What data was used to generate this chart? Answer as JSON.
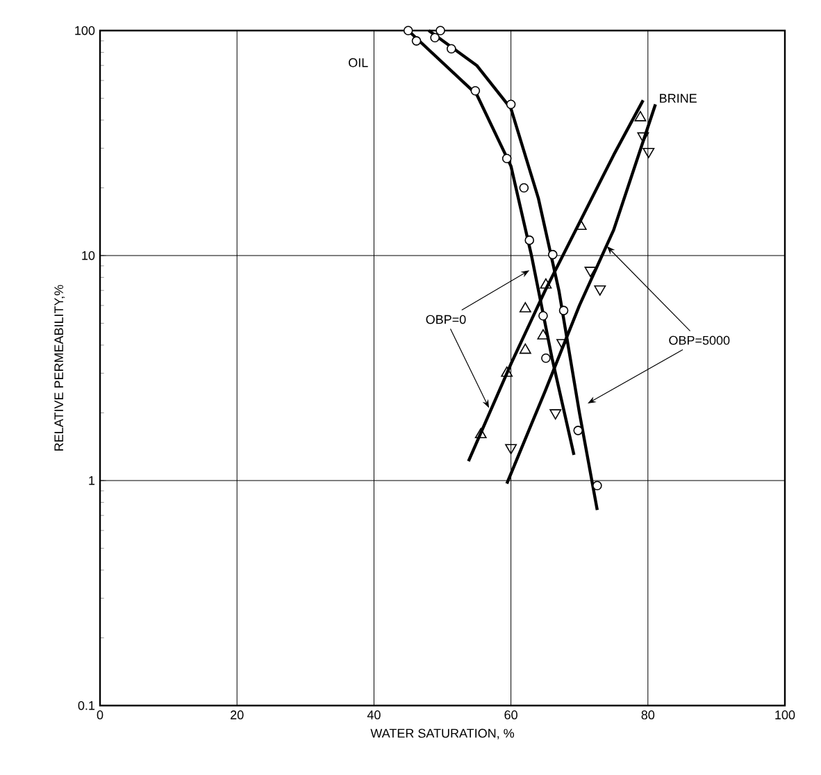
{
  "chart_data": {
    "type": "scatter",
    "xlabel": "WATER SATURATION, %",
    "ylabel": "RELATIVE  PERMEABILITY,%",
    "log": "y",
    "grid": true,
    "xlim": [
      0,
      100
    ],
    "ylim": [
      0.1,
      100
    ],
    "xticks": [
      0,
      20,
      40,
      60,
      80,
      100
    ],
    "yticks": [
      0.1,
      1,
      10,
      100
    ],
    "annotations": [
      "OIL",
      "BRINE",
      {
        "text": "OBP=0",
        "x": 62.7,
        "y": 8.6
      },
      {
        "text": "OBP=5000",
        "x": 74,
        "y": 11
      }
    ],
    "series": [
      {
        "marker": "circle",
        "color": "#000000",
        "x": [
          45,
          46.2,
          54.8,
          59.4,
          61.9,
          62.7,
          64.7,
          65.1,
          69.8
        ],
        "values": [
          100,
          90,
          54,
          27,
          20,
          11.7,
          5.4,
          3.5,
          1.67
        ]
      },
      {
        "marker": "circle",
        "color": "#000000",
        "x": [
          48.9,
          49.7,
          51.3,
          60,
          66.1,
          67.7,
          72.6
        ],
        "values": [
          93,
          100,
          83,
          47,
          10.1,
          5.7,
          0.95
        ]
      },
      {
        "marker": "triangle",
        "color": "#000000",
        "x": [
          55.6,
          59.4,
          62.1,
          62.1,
          64.7,
          65.1,
          70.2,
          78.9
        ],
        "values": [
          1.6,
          3.0,
          3.8,
          5.8,
          4.4,
          7.4,
          13.5,
          41
        ]
      },
      {
        "marker": "triangle down",
        "color": "#000000",
        "x": [
          60,
          66.5,
          67.5,
          71.6,
          73,
          79.3,
          80.1
        ],
        "values": [
          1.4,
          2.0,
          4.1,
          8.6,
          7.1,
          34,
          29
        ]
      },
      {
        "type": "line",
        "marker": "none",
        "color": "#000000",
        "x": [
          45,
          55,
          60,
          63,
          66,
          69.2
        ],
        "values": [
          100,
          52,
          25,
          10,
          3.5,
          1.3
        ]
      },
      {
        "type": "line",
        "marker": "none",
        "color": "#000000",
        "x": [
          48,
          55,
          60,
          64,
          67,
          70,
          72.6
        ],
        "values": [
          100,
          70,
          45,
          18,
          7,
          2,
          0.74
        ]
      },
      {
        "type": "line",
        "marker": "none",
        "color": "#000000",
        "x": [
          53.8,
          60,
          65,
          70,
          75,
          79.3
        ],
        "values": [
          1.22,
          3.3,
          7,
          14,
          28,
          49
        ]
      },
      {
        "type": "line",
        "marker": "none",
        "color": "#000000",
        "x": [
          59.4,
          65,
          70,
          75,
          81.1
        ],
        "values": [
          0.97,
          2.5,
          6,
          13,
          47
        ]
      }
    ]
  }
}
